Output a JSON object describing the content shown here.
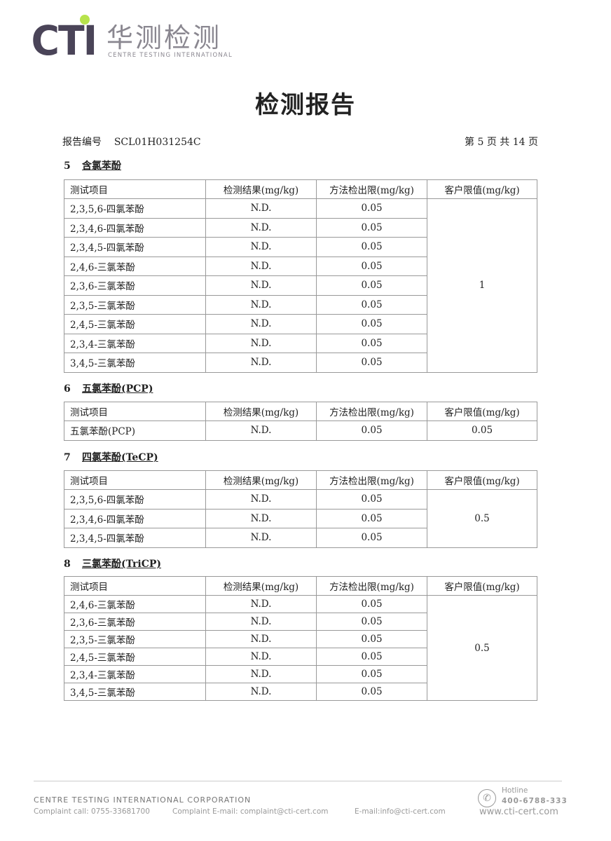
{
  "logo": {
    "brand": "CTI",
    "cn": "华测检测",
    "en": "CENTRE TESTING INTERNATIONAL"
  },
  "title": "检测报告",
  "meta": {
    "report_no_label": "报告编号",
    "report_no": "SCL01H031254C",
    "page": "第 5 页   共 14 页"
  },
  "headers": [
    "测试项目",
    "检测结果(mg/kg)",
    "方法检出限(mg/kg)",
    "客户限值(mg/kg)"
  ],
  "sections": [
    {
      "num": "5",
      "name": "含氯苯酚",
      "limit": "1",
      "rows": [
        [
          "2,3,5,6-四氯苯酚",
          "N.D.",
          "0.05"
        ],
        [
          "2,3,4,6-四氯苯酚",
          "N.D.",
          "0.05"
        ],
        [
          "2,3,4,5-四氯苯酚",
          "N.D.",
          "0.05"
        ],
        [
          "2,4,6-三氯苯酚",
          "N.D.",
          "0.05"
        ],
        [
          "2,3,6-三氯苯酚",
          "N.D.",
          "0.05"
        ],
        [
          "2,3,5-三氯苯酚",
          "N.D.",
          "0.05"
        ],
        [
          "2,4,5-三氯苯酚",
          "N.D.",
          "0.05"
        ],
        [
          "2,3,4-三氯苯酚",
          "N.D.",
          "0.05"
        ],
        [
          "3,4,5-三氯苯酚",
          "N.D.",
          "0.05"
        ]
      ]
    },
    {
      "num": "6",
      "name": "五氯苯酚(PCP)",
      "limit": "0.05",
      "rows": [
        [
          "五氯苯酚(PCP)",
          "N.D.",
          "0.05"
        ]
      ]
    },
    {
      "num": "7",
      "name": "四氯苯酚(TeCP)",
      "limit": "0.5",
      "rows": [
        [
          "2,3,5,6-四氯苯酚",
          "N.D.",
          "0.05"
        ],
        [
          "2,3,4,6-四氯苯酚",
          "N.D.",
          "0.05"
        ],
        [
          "2,3,4,5-四氯苯酚",
          "N.D.",
          "0.05"
        ]
      ]
    },
    {
      "num": "8",
      "name": "三氯苯酚(TriCP)",
      "limit": "0.5",
      "rows": [
        [
          "2,4,6-三氯苯酚",
          "N.D.",
          "0.05"
        ],
        [
          "2,3,6-三氯苯酚",
          "N.D.",
          "0.05"
        ],
        [
          "2,3,5-三氯苯酚",
          "N.D.",
          "0.05"
        ],
        [
          "2,4,5-三氯苯酚",
          "N.D.",
          "0.05"
        ],
        [
          "2,3,4-三氯苯酚",
          "N.D.",
          "0.05"
        ],
        [
          "3,4,5-三氯苯酚",
          "N.D.",
          "0.05"
        ]
      ]
    }
  ],
  "footer": {
    "company": "CENTRE TESTING INTERNATIONAL CORPORATION",
    "complaint_call": "Complaint call: 0755-33681700",
    "complaint_email": "Complaint E-mail: complaint@cti-cert.com",
    "email": "E-mail:info@cti-cert.com",
    "hotline_label": "Hotline",
    "hotline": "400-6788-333",
    "website": "www.cti-cert.com"
  }
}
